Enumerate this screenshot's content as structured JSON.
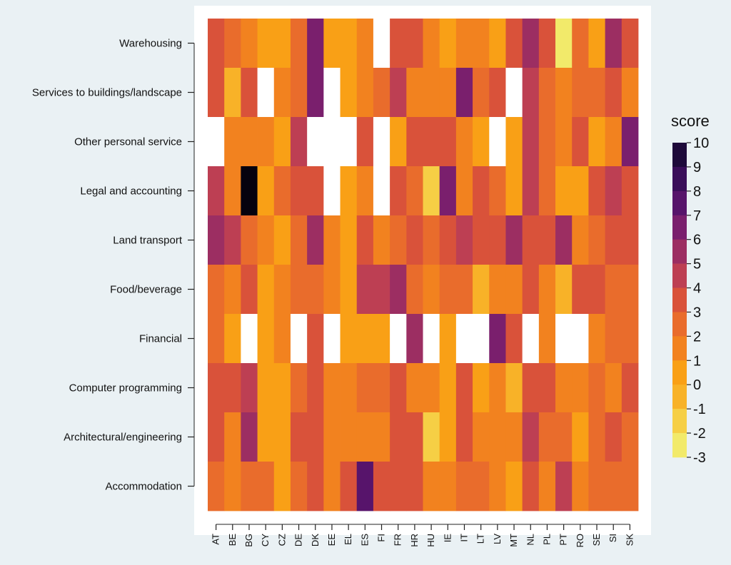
{
  "chart_data": {
    "type": "heatmap",
    "xlabel": "",
    "ylabel": "",
    "x_categories": [
      "AT",
      "BE",
      "BG",
      "CY",
      "CZ",
      "DE",
      "DK",
      "EE",
      "EL",
      "ES",
      "FI",
      "FR",
      "HR",
      "HU",
      "IE",
      "IT",
      "LT",
      "LV",
      "MT",
      "NL",
      "PL",
      "PT",
      "RO",
      "SE",
      "SI",
      "SK"
    ],
    "y_categories": [
      "Warehousing",
      "Services to buildings/landscape",
      "Other personal service",
      "Legal and accounting",
      "Land transport",
      "Food/beverage",
      "Financial",
      "Computer programming",
      "Architectural/engineering",
      "Accommodation"
    ],
    "values": [
      [
        3,
        2,
        1,
        0,
        0,
        2,
        6,
        0,
        0,
        1,
        null,
        3,
        3,
        1,
        0,
        1,
        1,
        0,
        3,
        5,
        3,
        -3,
        2,
        0,
        5,
        3
      ],
      [
        3,
        -1,
        3,
        null,
        1,
        2,
        6,
        null,
        0,
        1,
        2,
        4,
        1,
        1,
        1,
        6,
        2,
        3,
        null,
        4,
        2,
        1,
        2,
        2,
        3,
        1
      ],
      [
        null,
        1,
        1,
        1,
        0,
        4,
        null,
        null,
        null,
        3,
        null,
        0,
        3,
        3,
        3,
        1,
        0,
        null,
        0,
        4,
        2,
        1,
        3,
        0,
        1,
        6
      ],
      [
        4,
        1,
        10,
        0,
        2,
        3,
        3,
        null,
        0,
        1,
        null,
        3,
        2,
        -2,
        6,
        1,
        3,
        2,
        0,
        4,
        2,
        0,
        0,
        3,
        4,
        3
      ],
      [
        5,
        4,
        2,
        1,
        0,
        2,
        5,
        1,
        0,
        3,
        1,
        2,
        3,
        2,
        3,
        4,
        3,
        3,
        5,
        3,
        3,
        5,
        1,
        2,
        3,
        3
      ],
      [
        2,
        1,
        3,
        0,
        1,
        2,
        2,
        1,
        0,
        4,
        4,
        5,
        2,
        1,
        2,
        2,
        -1,
        1,
        1,
        3,
        1,
        -1,
        3,
        3,
        2,
        2
      ],
      [
        2,
        0,
        null,
        0,
        1,
        null,
        3,
        null,
        0,
        0,
        0,
        null,
        5,
        null,
        0,
        null,
        null,
        6,
        3,
        null,
        1,
        null,
        null,
        1,
        2,
        2
      ],
      [
        3,
        3,
        4,
        0,
        0,
        2,
        3,
        1,
        1,
        2,
        2,
        3,
        1,
        1,
        0,
        3,
        0,
        1,
        -1,
        3,
        3,
        1,
        1,
        2,
        1,
        3
      ],
      [
        3,
        1,
        5,
        0,
        0,
        3,
        3,
        1,
        1,
        1,
        1,
        3,
        3,
        -2,
        0,
        3,
        1,
        1,
        1,
        4,
        2,
        2,
        0,
        2,
        3,
        2
      ],
      [
        2,
        1,
        2,
        2,
        0,
        2,
        3,
        1,
        3,
        7,
        3,
        3,
        3,
        1,
        1,
        2,
        2,
        1,
        0,
        3,
        1,
        4,
        1,
        2,
        2,
        2
      ]
    ],
    "zlabel": "score",
    "zlim": [
      -3,
      10
    ],
    "legend_ticks": [
      10,
      9,
      8,
      7,
      6,
      5,
      4,
      3,
      2,
      1,
      0,
      -1,
      -2,
      -3
    ],
    "legend_position": "right",
    "grid": false,
    "missing_color": "#ffffff",
    "color_stops": [
      {
        "v": -3,
        "c": "#f2ea6a"
      },
      {
        "v": -2,
        "c": "#f6cf45"
      },
      {
        "v": -1,
        "c": "#f8b228"
      },
      {
        "v": 0,
        "c": "#f9a016"
      },
      {
        "v": 1,
        "c": "#f2821f"
      },
      {
        "v": 2,
        "c": "#e96c2c"
      },
      {
        "v": 3,
        "c": "#d9523a"
      },
      {
        "v": 4,
        "c": "#bd3f53"
      },
      {
        "v": 5,
        "c": "#9c2e62"
      },
      {
        "v": 6,
        "c": "#7a1f6d"
      },
      {
        "v": 7,
        "c": "#57146b"
      },
      {
        "v": 8,
        "c": "#3a0e59"
      },
      {
        "v": 9,
        "c": "#1e0a3a"
      },
      {
        "v": 10,
        "c": "#05020e"
      }
    ]
  }
}
